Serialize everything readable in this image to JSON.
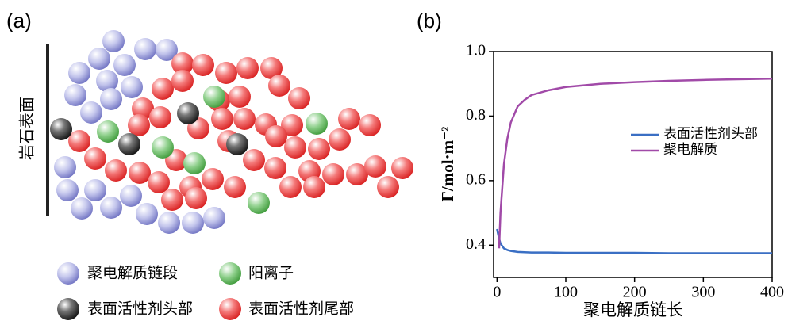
{
  "panel_a": {
    "label": "(a)",
    "surface": "岩石表面",
    "legend": [
      "聚电解质链段",
      "阳离子",
      "表面活性剂头部",
      "表面活性剂尾部"
    ]
  },
  "chart_data": {
    "type": "line",
    "label": "(b)",
    "x_label": "聚电解质链长",
    "y_label": "Γ/mol·m⁻²",
    "x": [
      0,
      3,
      5,
      10,
      15,
      20,
      30,
      40,
      50,
      75,
      100,
      150,
      200,
      250,
      300,
      350,
      400
    ],
    "series": [
      {
        "name": "表面活性剂头部",
        "color": "#3a6fc4",
        "values": [
          0.45,
          0.42,
          0.405,
          0.39,
          0.385,
          0.382,
          0.379,
          0.378,
          0.377,
          0.377,
          0.376,
          0.376,
          0.376,
          0.375,
          0.375,
          0.375,
          0.375
        ]
      },
      {
        "name": "聚电解质",
        "color": "#a14aa8",
        "values": [
          null,
          0.39,
          0.5,
          0.65,
          0.73,
          0.78,
          0.83,
          0.85,
          0.865,
          0.88,
          0.89,
          0.9,
          0.905,
          0.909,
          0.912,
          0.914,
          0.916
        ]
      }
    ],
    "xlim": [
      -5,
      400
    ],
    "ylim": [
      0.3,
      1.0
    ],
    "xticks": [
      0,
      100,
      200,
      300,
      400
    ],
    "yticks": [
      {
        "value": 0.4,
        "label": "0.4"
      },
      {
        "value": 0.6,
        "label": "0.6"
      },
      {
        "value": 0.8,
        "label": "0.8"
      },
      {
        "value": 1.0,
        "label": "1.0"
      }
    ]
  }
}
